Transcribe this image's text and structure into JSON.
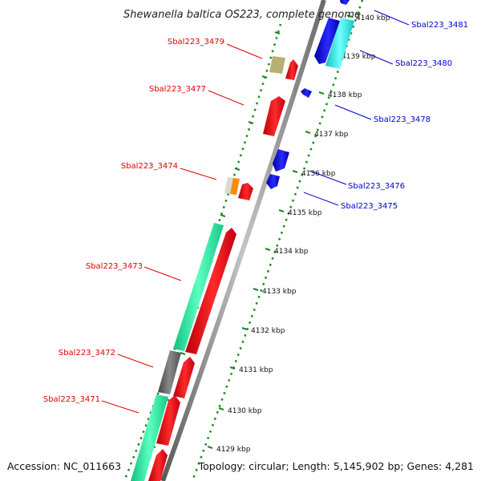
{
  "title": "Shewanella baltica OS223, complete genome",
  "footer": {
    "accession": "Accession: NC_011663",
    "topology": "Topology: circular; Length: 5,145,902 bp; Genes: 4,281"
  },
  "ticks": [
    {
      "label": "4129 kbp"
    },
    {
      "label": "4130 kbp"
    },
    {
      "label": "4131 kbp"
    },
    {
      "label": "4132 kbp"
    },
    {
      "label": "4133 kbp"
    },
    {
      "label": "4134 kbp"
    },
    {
      "label": "4135 kbp"
    },
    {
      "label": "4136 kbp"
    },
    {
      "label": "4137 kbp"
    },
    {
      "label": "4138 kbp"
    },
    {
      "label": "4139 kbp"
    },
    {
      "label": "4140 kbp"
    }
  ],
  "labels_forward": [
    {
      "text": "Sbal223_3479",
      "color": "#e00000"
    },
    {
      "text": "Sbal223_3477",
      "color": "#e00000"
    },
    {
      "text": "Sbal223_3474",
      "color": "#e00000"
    },
    {
      "text": "Sbal223_3473",
      "color": "#e00000"
    },
    {
      "text": "Sbal223_3472",
      "color": "#e00000"
    },
    {
      "text": "Sbal223_3471",
      "color": "#e00000"
    }
  ],
  "labels_reverse": [
    {
      "text": "Sbal223_3481",
      "color": "#0000cc"
    },
    {
      "text": "Sbal223_3480",
      "color": "#0000cc"
    },
    {
      "text": "Sbal223_3478",
      "color": "#0000cc"
    },
    {
      "text": "Sbal223_3476",
      "color": "#0000cc"
    },
    {
      "text": "Sbal223_3475",
      "color": "#0000cc"
    }
  ],
  "colors": {
    "forward_gene": "#e8101a",
    "reverse_gene": "#1010e0",
    "cog_green": "#2ee8a0",
    "cog_cyan": "#22e8e8",
    "cog_khaki": "#b8b070",
    "cog_gray": "#6a6a6a",
    "cog_orange": "#ff8a00",
    "backbone": "#888888",
    "tick": "#1a8a1a"
  }
}
